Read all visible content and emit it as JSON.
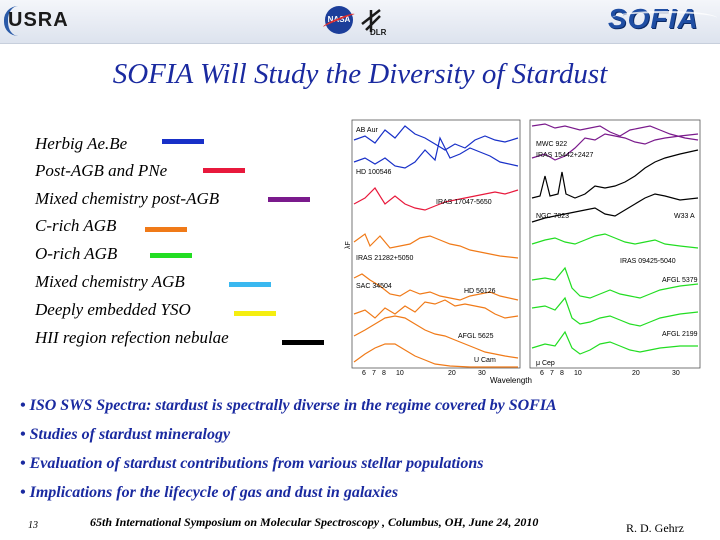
{
  "header": {
    "usra_logo": "USRA",
    "nasa_logo": "NASA",
    "dlr_logo": "DLR",
    "sofia_logo": "SOFIA"
  },
  "title": "SOFIA Will Study the Diversity of Stardust",
  "legend": [
    {
      "label": "Herbig Ae.Be",
      "color": "#1830c8"
    },
    {
      "label": "Post-AGB and PNe",
      "color": "#e8193c"
    },
    {
      "label": "Mixed chemistry post-AGB",
      "color": "#7a1a8c"
    },
    {
      "label": "C-rich AGB",
      "color": "#f07a18"
    },
    {
      "label": "O-rich AGB",
      "color": "#22dd22"
    },
    {
      "label": "Mixed chemistry AGB",
      "color": "#3ab8f0"
    },
    {
      "label": "Deeply embedded YSO",
      "color": "#f5ee10"
    },
    {
      "label": "HII region refection nebulae",
      "color": "#000000"
    }
  ],
  "spectra": {
    "ylabel": "λF",
    "xlabel": "Wavelength",
    "left_ticks": [
      "6",
      "7",
      "8",
      "10",
      "20",
      "30"
    ],
    "right_ticks": [
      "6",
      "7",
      "8",
      "10",
      "20",
      "30"
    ],
    "left_labels": [
      "AB Aur",
      "HD 100546",
      "IRAS 17047-5650",
      "IRAS 21282+5050",
      "SAC 34504",
      "HD 56126",
      "AFGL 5625",
      "U Cam"
    ],
    "right_labels": [
      "MWC 922",
      "IRAS 15442+2427",
      "NGC 7023",
      "W33 A",
      "IRAS 09425-5040",
      "AFGL 5379",
      "AFGL 2199",
      "μ Cep"
    ]
  },
  "bullets": [
    "• ISO SWS Spectra: stardust is spectrally diverse in the regime covered by SOFIA",
    "• Studies of stardust mineralogy",
    "• Evaluation of stardust contributions from various stellar populations",
    "• Implications for the lifecycle of gas and dust in galaxies"
  ],
  "footer": {
    "page_number": "13",
    "conference": "65th International Symposium on Molecular Spectroscopy , Columbus, OH, June 24, 2010",
    "author": "R.  D. Gehrz"
  }
}
